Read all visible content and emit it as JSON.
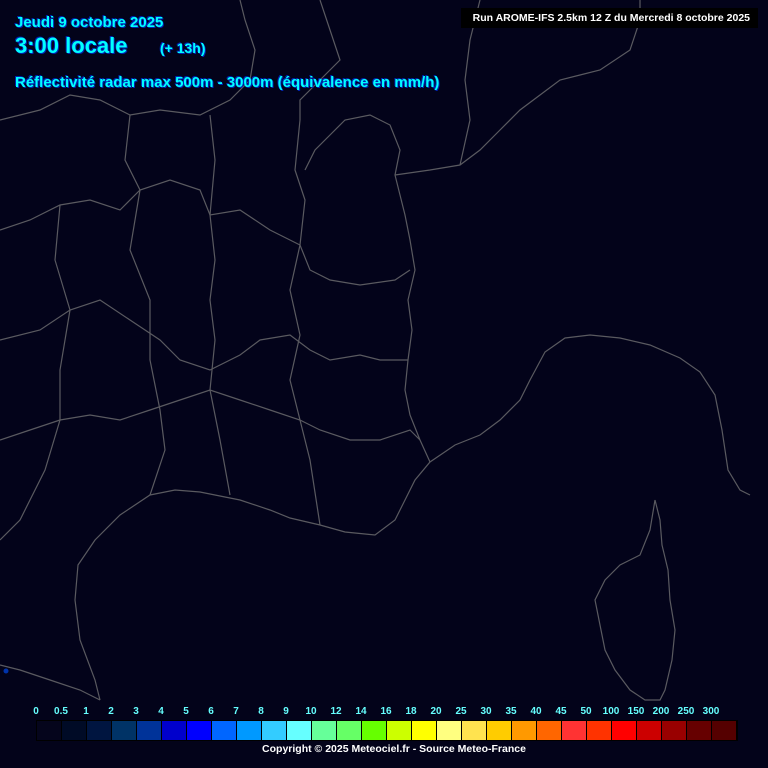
{
  "header": {
    "date": "Jeudi 9 octobre 2025",
    "time": "3:00 locale",
    "offset": "(+ 13h)",
    "product": "Réflectivité radar max 500m - 3000m (équivalence en mm/h)",
    "run": "Run AROME-IFS 2.5km 12 Z du Mercredi 8 octobre 2025"
  },
  "legend": {
    "labels": [
      "0",
      "0.5",
      "1",
      "2",
      "3",
      "4",
      "5",
      "6",
      "7",
      "8",
      "9",
      "10",
      "12",
      "14",
      "16",
      "18",
      "20",
      "25",
      "30",
      "35",
      "40",
      "45",
      "50",
      "100",
      "150",
      "200",
      "250",
      "300"
    ],
    "colors": [
      "#05051c",
      "#000b26",
      "#001540",
      "#003366",
      "#003399",
      "#0000cc",
      "#0000ff",
      "#0066ff",
      "#0099ff",
      "#33ccff",
      "#66ffff",
      "#66ff99",
      "#66ff66",
      "#66ff00",
      "#ccff00",
      "#ffff00",
      "#ffff80",
      "#ffe34f",
      "#ffcc00",
      "#ff9900",
      "#ff6600",
      "#ff3333",
      "#ff3300",
      "#ff0000",
      "#cc0000",
      "#990000",
      "#660000",
      "#550000"
    ]
  },
  "footer": {
    "copyright": "Copyright © 2025 Meteociel.fr - Source Meteo-France"
  },
  "colors": {
    "background": "#03031a",
    "borders": "#5a5a60",
    "title_text": "#00ffff"
  }
}
